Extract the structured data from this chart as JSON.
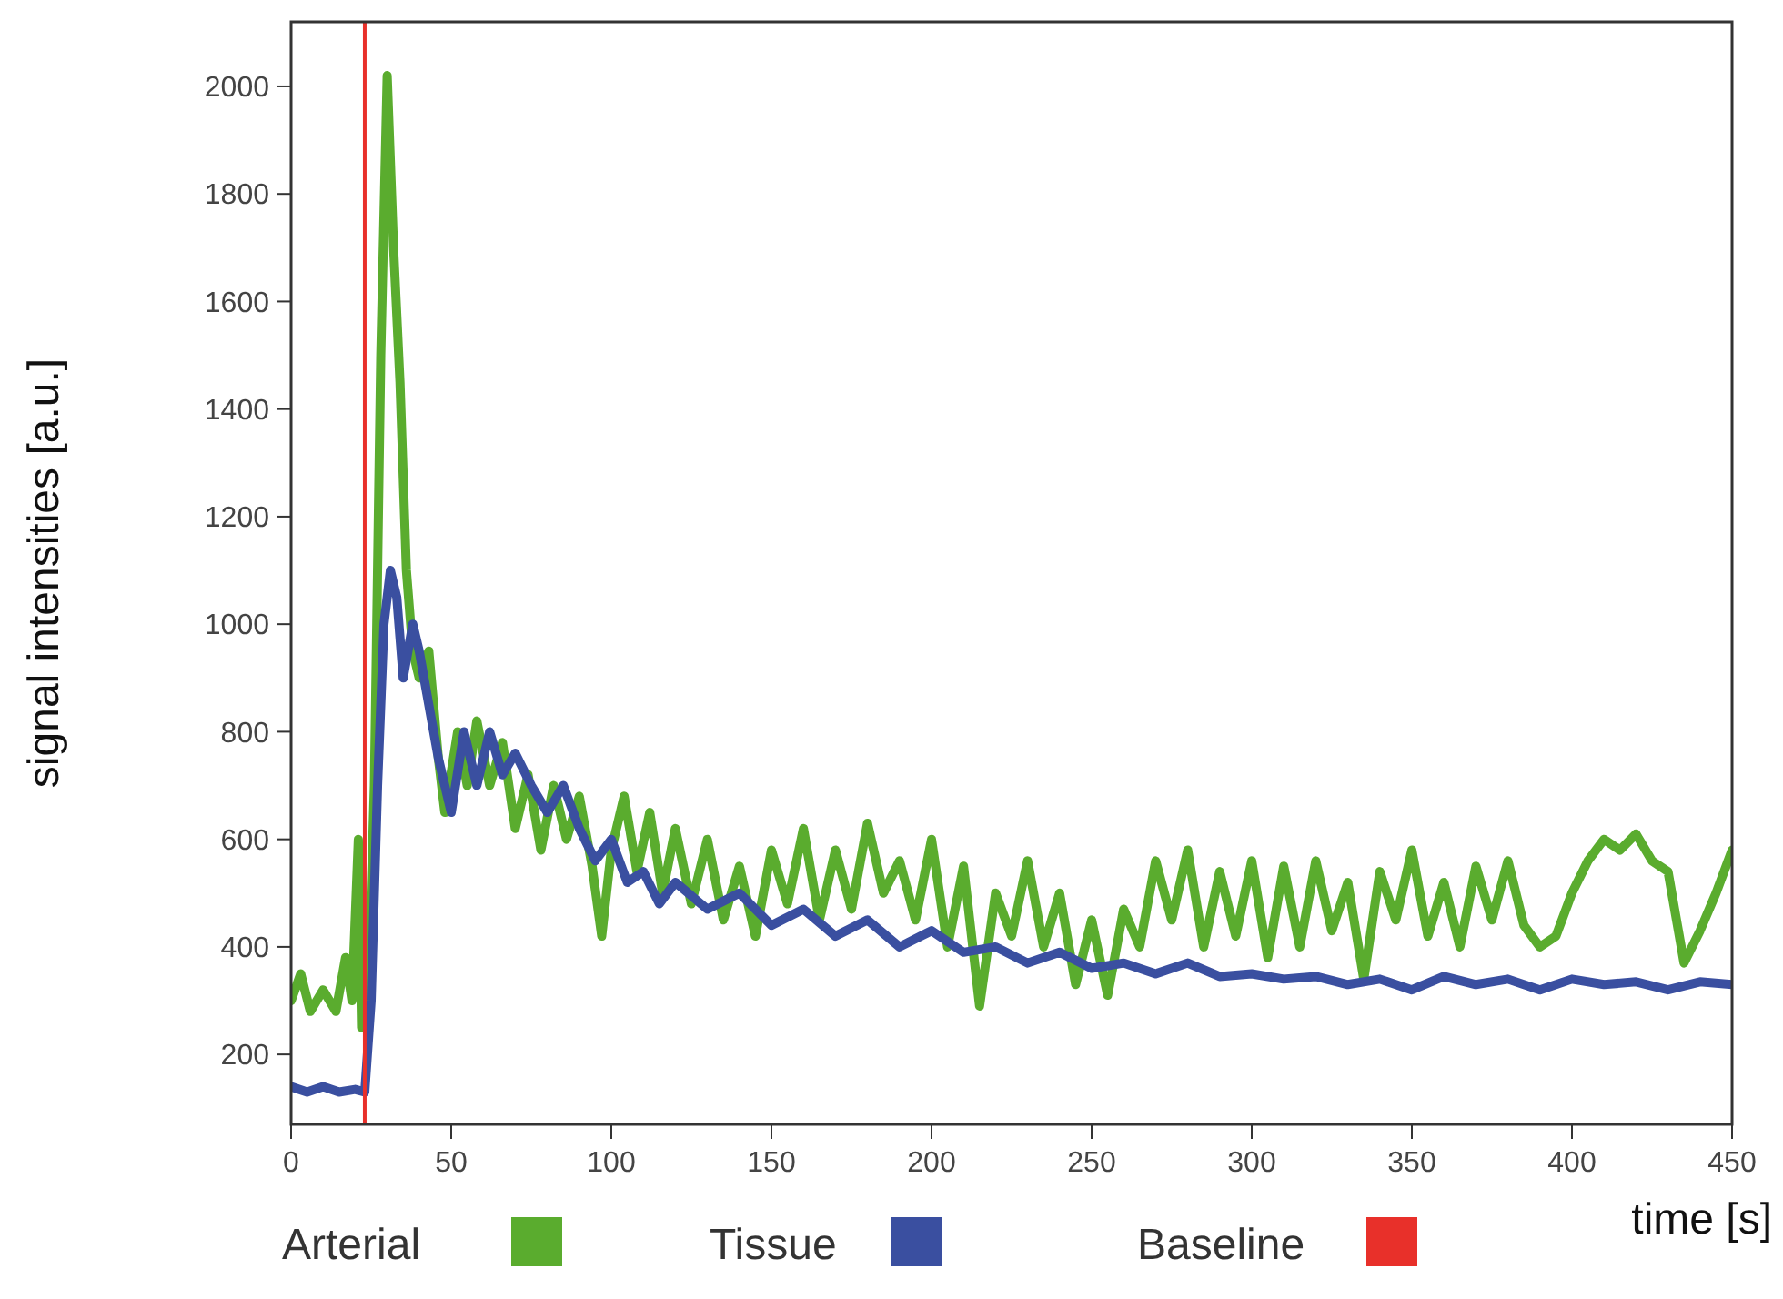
{
  "chart_data": {
    "type": "line",
    "xlabel": "time [s]",
    "ylabel": "signal intensities [a.u.]",
    "xlim": [
      0,
      450
    ],
    "xticks": [
      0,
      50,
      100,
      150,
      200,
      250,
      300,
      350,
      400,
      450
    ],
    "ylim": [
      70,
      2120
    ],
    "yticks": [
      200,
      400,
      600,
      800,
      1000,
      1200,
      1400,
      1600,
      1800,
      2000
    ],
    "grid": false,
    "legend": "bottom",
    "marker": "none",
    "line_style": "solid",
    "series": [
      {
        "name": "Arterial",
        "color": "#5aac2e",
        "x": [
          0,
          3,
          6,
          10,
          14,
          17,
          19,
          21,
          22,
          24,
          26,
          28,
          30,
          32,
          34,
          36,
          38,
          40,
          43,
          46,
          48,
          52,
          55,
          58,
          62,
          66,
          70,
          74,
          78,
          82,
          86,
          90,
          94,
          97,
          100,
          104,
          108,
          112,
          116,
          120,
          125,
          130,
          135,
          140,
          145,
          150,
          155,
          160,
          165,
          170,
          175,
          180,
          185,
          190,
          195,
          200,
          205,
          210,
          215,
          220,
          225,
          230,
          235,
          240,
          245,
          250,
          255,
          260,
          265,
          270,
          275,
          280,
          285,
          290,
          295,
          300,
          305,
          310,
          315,
          320,
          325,
          330,
          335,
          340,
          345,
          350,
          355,
          360,
          365,
          370,
          375,
          380,
          385,
          390,
          395,
          400,
          405,
          410,
          415,
          420,
          425,
          430,
          435,
          440,
          445,
          450
        ],
        "values": [
          300,
          350,
          280,
          320,
          280,
          380,
          300,
          600,
          250,
          300,
          700,
          1500,
          2020,
          1700,
          1450,
          1100,
          950,
          900,
          950,
          750,
          650,
          800,
          700,
          820,
          700,
          780,
          620,
          720,
          580,
          700,
          600,
          680,
          550,
          420,
          580,
          680,
          540,
          650,
          500,
          620,
          480,
          600,
          450,
          550,
          420,
          580,
          480,
          620,
          450,
          580,
          470,
          630,
          500,
          560,
          450,
          600,
          400,
          550,
          290,
          500,
          420,
          560,
          400,
          500,
          330,
          450,
          310,
          470,
          400,
          560,
          450,
          580,
          400,
          540,
          420,
          560,
          380,
          550,
          400,
          560,
          430,
          520,
          340,
          540,
          450,
          580,
          420,
          520,
          400,
          550,
          450,
          560,
          440,
          400,
          420,
          500,
          560,
          600,
          580,
          610,
          560,
          540,
          370,
          430,
          500,
          580
        ]
      },
      {
        "name": "Tissue",
        "color": "#3a4fa0",
        "x": [
          0,
          5,
          10,
          15,
          20,
          23,
          25,
          27,
          29,
          31,
          33,
          35,
          38,
          40,
          43,
          46,
          50,
          54,
          58,
          62,
          66,
          70,
          75,
          80,
          85,
          90,
          95,
          100,
          105,
          110,
          115,
          120,
          130,
          140,
          150,
          160,
          170,
          180,
          190,
          200,
          210,
          220,
          230,
          240,
          250,
          260,
          270,
          280,
          290,
          300,
          310,
          320,
          330,
          340,
          350,
          360,
          370,
          380,
          390,
          400,
          410,
          420,
          430,
          440,
          450
        ],
        "values": [
          140,
          130,
          140,
          130,
          135,
          130,
          300,
          700,
          1000,
          1100,
          1050,
          900,
          1000,
          950,
          850,
          750,
          650,
          800,
          700,
          800,
          720,
          760,
          700,
          650,
          700,
          620,
          560,
          600,
          520,
          540,
          480,
          520,
          470,
          500,
          440,
          470,
          420,
          450,
          400,
          430,
          390,
          400,
          370,
          390,
          360,
          370,
          350,
          370,
          345,
          350,
          340,
          345,
          330,
          340,
          320,
          345,
          330,
          340,
          320,
          340,
          330,
          335,
          320,
          335,
          330
        ]
      }
    ],
    "ref_lines": [
      {
        "axis": "x",
        "value": 23,
        "label": "Baseline",
        "color": "#e8302a",
        "line_style": "solid"
      }
    ]
  }
}
